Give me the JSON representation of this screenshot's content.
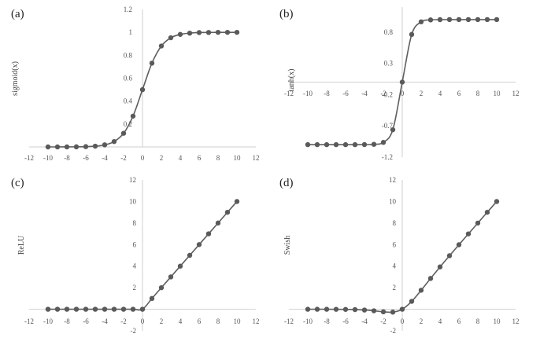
{
  "chart_data": [
    {
      "panel": "(a)",
      "type": "line",
      "ylabel": "sigmoid(x)",
      "xlim": [
        -12,
        12
      ],
      "ylim": [
        0,
        1.2
      ],
      "xticks": [
        -12,
        -10,
        -8,
        -6,
        -4,
        -2,
        0,
        2,
        4,
        6,
        8,
        10,
        12
      ],
      "yticks": [
        0.2,
        0.4,
        0.6,
        0.8,
        1,
        1.2
      ],
      "ytick_labels": [
        "0.2",
        "0.4",
        "0.6",
        "0.8",
        "1",
        "1.2"
      ],
      "x": [
        -10,
        -9,
        -8,
        -7,
        -6,
        -5,
        -4,
        -3,
        -2,
        -1,
        0,
        1,
        2,
        3,
        4,
        5,
        6,
        7,
        8,
        9,
        10
      ],
      "y": [
        0.0,
        0.0001,
        0.0003,
        0.0009,
        0.0025,
        0.0067,
        0.018,
        0.047,
        0.119,
        0.269,
        0.5,
        0.731,
        0.881,
        0.953,
        0.982,
        0.993,
        0.998,
        0.999,
        1.0,
        1.0,
        1.0
      ],
      "grid": false
    },
    {
      "panel": "(b)",
      "type": "line",
      "ylabel": "tanh(x)",
      "xlim": [
        -12,
        12
      ],
      "ylim": [
        -1.2,
        1.2
      ],
      "xticks": [
        -12,
        -10,
        -8,
        -6,
        -4,
        -2,
        0,
        2,
        4,
        6,
        8,
        10,
        12
      ],
      "yticks": [
        -1.2,
        -0.7,
        -0.2,
        0.3,
        0.8
      ],
      "ytick_labels": [
        "-1.2",
        "-0.7",
        "-0.2",
        "0.3",
        "0.8"
      ],
      "x": [
        -10,
        -9,
        -8,
        -7,
        -6,
        -5,
        -4,
        -3,
        -2,
        -1,
        0,
        1,
        2,
        3,
        4,
        5,
        6,
        7,
        8,
        9,
        10
      ],
      "y": [
        -1.0,
        -1.0,
        -1.0,
        -1.0,
        -1.0,
        -1.0,
        -0.999,
        -0.995,
        -0.964,
        -0.762,
        0.0,
        0.762,
        0.964,
        0.995,
        0.999,
        1.0,
        1.0,
        1.0,
        1.0,
        1.0,
        1.0
      ],
      "grid": false
    },
    {
      "panel": "(c)",
      "type": "line",
      "ylabel": "ReLU",
      "xlim": [
        -12,
        12
      ],
      "ylim": [
        -2,
        12
      ],
      "xticks": [
        -12,
        -10,
        -8,
        -6,
        -4,
        -2,
        0,
        2,
        4,
        6,
        8,
        10,
        12
      ],
      "yticks": [
        -2,
        2,
        4,
        6,
        8,
        10,
        12
      ],
      "ytick_labels": [
        "-2",
        "2",
        "4",
        "6",
        "8",
        "10",
        "12"
      ],
      "x": [
        -10,
        -9,
        -8,
        -7,
        -6,
        -5,
        -4,
        -3,
        -2,
        -1,
        0,
        1,
        2,
        3,
        4,
        5,
        6,
        7,
        8,
        9,
        10
      ],
      "y": [
        0,
        0,
        0,
        0,
        0,
        0,
        0,
        0,
        0,
        0,
        0,
        1,
        2,
        3,
        4,
        5,
        6,
        7,
        8,
        9,
        10
      ],
      "grid": false
    },
    {
      "panel": "(d)",
      "type": "line",
      "ylabel": "Swish",
      "xlim": [
        -12,
        12
      ],
      "ylim": [
        -2,
        12
      ],
      "xticks": [
        -12,
        -10,
        -8,
        -6,
        -4,
        -2,
        0,
        2,
        4,
        6,
        8,
        10,
        12
      ],
      "yticks": [
        -2,
        2,
        4,
        6,
        8,
        10,
        12
      ],
      "ytick_labels": [
        "-2",
        "2",
        "4",
        "6",
        "8",
        "10",
        "12"
      ],
      "x": [
        -10,
        -9,
        -8,
        -7,
        -6,
        -5,
        -4,
        -3,
        -2,
        -1,
        0,
        1,
        2,
        3,
        4,
        5,
        6,
        7,
        8,
        9,
        10
      ],
      "y": [
        -0.0005,
        -0.0011,
        -0.0027,
        -0.0064,
        -0.0148,
        -0.0335,
        -0.0719,
        -0.1423,
        -0.2384,
        -0.2689,
        0,
        0.7311,
        1.7616,
        2.8577,
        3.9281,
        4.9665,
        5.9852,
        6.9936,
        7.9973,
        8.9989,
        9.9995
      ],
      "grid": false
    }
  ]
}
